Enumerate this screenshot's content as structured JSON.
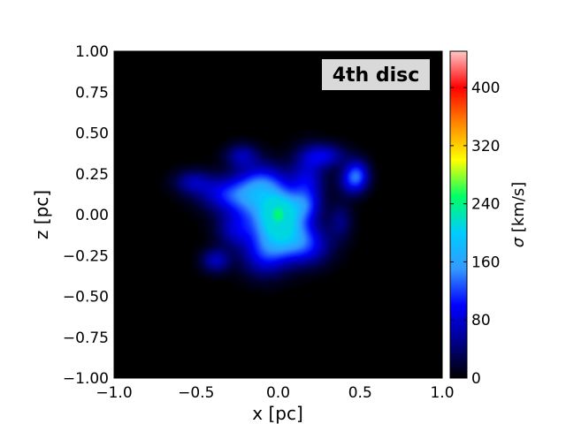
{
  "chart_data": {
    "type": "heatmap",
    "annotation": "4th disc",
    "xlabel": "x [pc]",
    "ylabel": "z [pc]",
    "colorbar_label_symbol": "σ",
    "colorbar_label_unit": " [km/s]",
    "xlim": [
      -1.0,
      1.0
    ],
    "ylim": [
      -1.0,
      1.0
    ],
    "x_ticks": [
      -1.0,
      -0.5,
      0.0,
      0.5,
      1.0
    ],
    "x_tick_labels": [
      "−1.0",
      "−0.5",
      "0.0",
      "0.5",
      "1.0"
    ],
    "y_ticks": [
      1.0,
      0.75,
      0.5,
      0.25,
      0.0,
      -0.25,
      -0.5,
      -0.75,
      -1.0
    ],
    "y_tick_labels": [
      "1.00",
      "0.75",
      "0.50",
      "0.25",
      "0.00",
      "−0.25",
      "−0.50",
      "−0.75",
      "−1.00"
    ],
    "colorbar_range": [
      0,
      450
    ],
    "colorbar_ticks": [
      0,
      80,
      160,
      240,
      320,
      400
    ],
    "colorbar_tick_labels": [
      "0",
      "80",
      "160",
      "240",
      "320",
      "400"
    ],
    "colormap": [
      "#000000",
      "#000088",
      "#0000ff",
      "#3399ff",
      "#00ccff",
      "#00ff66",
      "#ffff00",
      "#ff8800",
      "#ff0000",
      "#ffc8c8"
    ],
    "background_color": "#000000",
    "grid": false,
    "blobs": [
      {
        "x": 0.0,
        "z": 0.0,
        "sx": 0.11,
        "sz": 0.13,
        "sigma": 150
      },
      {
        "x": 0.0,
        "z": 0.0,
        "sx": 0.05,
        "sz": 0.06,
        "sigma": 140
      },
      {
        "x": 0.05,
        "z": -0.12,
        "sx": 0.12,
        "sz": 0.09,
        "sigma": 90
      },
      {
        "x": -0.08,
        "z": -0.25,
        "sx": 0.1,
        "sz": 0.09,
        "sigma": 85
      },
      {
        "x": 0.18,
        "z": -0.2,
        "sx": 0.1,
        "sz": 0.08,
        "sigma": 75
      },
      {
        "x": -0.18,
        "z": 0.08,
        "sx": 0.12,
        "sz": 0.1,
        "sigma": 85
      },
      {
        "x": -0.1,
        "z": 0.2,
        "sx": 0.1,
        "sz": 0.08,
        "sigma": 80
      },
      {
        "x": 0.18,
        "z": 0.2,
        "sx": 0.07,
        "sz": 0.12,
        "sigma": 80
      },
      {
        "x": 0.28,
        "z": 0.36,
        "sx": 0.09,
        "sz": 0.05,
        "sigma": 80
      },
      {
        "x": -0.22,
        "z": 0.36,
        "sx": 0.07,
        "sz": 0.05,
        "sigma": 65
      },
      {
        "x": -0.33,
        "z": 0.13,
        "sx": 0.12,
        "sz": 0.07,
        "sigma": 70
      },
      {
        "x": -0.52,
        "z": 0.2,
        "sx": 0.08,
        "sz": 0.05,
        "sigma": 60
      },
      {
        "x": 0.48,
        "z": 0.25,
        "sx": 0.05,
        "sz": 0.06,
        "sigma": 95
      },
      {
        "x": 0.45,
        "z": 0.2,
        "sx": 0.06,
        "sz": 0.06,
        "sigma": 65
      },
      {
        "x": -0.38,
        "z": -0.28,
        "sx": 0.06,
        "sz": 0.05,
        "sigma": 70
      },
      {
        "x": 0.38,
        "z": -0.04,
        "sx": 0.05,
        "sz": 0.08,
        "sigma": 45
      },
      {
        "x": 0.15,
        "z": 0.05,
        "sx": 0.07,
        "sz": 0.06,
        "sigma": 60
      },
      {
        "x": -0.26,
        "z": -0.1,
        "sx": 0.08,
        "sz": 0.07,
        "sigma": 60
      }
    ],
    "core": {
      "x": 0.0,
      "z": 0.0,
      "sigma": 250
    }
  }
}
